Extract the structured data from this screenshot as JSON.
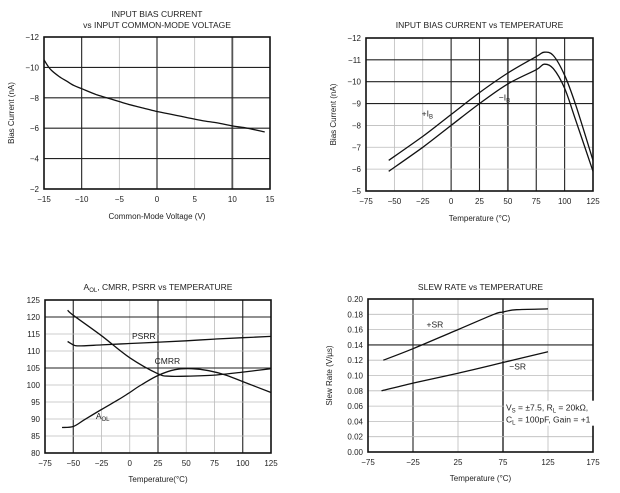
{
  "chart_data": [
    {
      "type": "line",
      "title": [
        "INPUT BIAS CURRENT",
        "vs INPUT COMMON-MODE VOLTAGE"
      ],
      "xlabel": "Common-Mode Voltage (V)",
      "ylabel": "Bias Current (nA)",
      "xlim": [
        -15,
        15
      ],
      "ylim": [
        -2,
        -12
      ],
      "xticks": [
        "−15",
        "−10",
        "−5",
        "0",
        "5",
        "10",
        "15"
      ],
      "xtick_values": [
        -15,
        -10,
        -5,
        0,
        5,
        10,
        15
      ],
      "yticks": [
        "−12",
        "−10",
        "−8",
        "−6",
        "−4",
        "−2"
      ],
      "ytick_values": [
        -12,
        -10,
        -8,
        -6,
        -4,
        -2
      ],
      "grid": true,
      "series": [
        {
          "name": "Bias Current",
          "x": [
            -15,
            -14.5,
            -14,
            -13,
            -12,
            -11,
            -10,
            -8,
            -6,
            -4,
            -2,
            0,
            2,
            4,
            6,
            8,
            10,
            12,
            14.3
          ],
          "y": [
            -10.5,
            -10.1,
            -9.8,
            -9.4,
            -9.1,
            -8.8,
            -8.6,
            -8.2,
            -7.9,
            -7.6,
            -7.35,
            -7.1,
            -6.9,
            -6.7,
            -6.5,
            -6.35,
            -6.15,
            -6.0,
            -5.75
          ]
        }
      ]
    },
    {
      "type": "line",
      "title": [
        "INPUT BIAS CURRENT vs TEMPERATURE"
      ],
      "xlabel": "Temperature (°C)",
      "ylabel": "Bias Current (nA)",
      "xlim": [
        -75,
        125
      ],
      "ylim": [
        -5,
        -12
      ],
      "xticks": [
        "−75",
        "−50",
        "−25",
        "0",
        "25",
        "50",
        "75",
        "100",
        "125"
      ],
      "xtick_values": [
        -75,
        -50,
        -25,
        0,
        25,
        50,
        75,
        100,
        125
      ],
      "yticks": [
        "−12",
        "−11",
        "−10",
        "−9",
        "−8",
        "−7",
        "−6",
        "−5"
      ],
      "ytick_values": [
        -12,
        -11,
        -10,
        -9,
        -8,
        -7,
        -6,
        -5
      ],
      "grid": true,
      "series": [
        {
          "name": "−IB",
          "label": "−I",
          "label_sub": "B",
          "x": [
            -55,
            -25,
            0,
            25,
            50,
            75,
            82,
            90,
            100,
            110,
            125
          ],
          "y": [
            -6.4,
            -7.5,
            -8.5,
            -9.5,
            -10.4,
            -11.15,
            -11.35,
            -11.2,
            -10.3,
            -8.9,
            -6.4
          ]
        },
        {
          "name": "+IB",
          "label": "+I",
          "label_sub": "B",
          "x": [
            -55,
            -25,
            0,
            25,
            50,
            75,
            82,
            90,
            100,
            110,
            125
          ],
          "y": [
            -5.9,
            -7.0,
            -8.0,
            -9.0,
            -9.9,
            -10.55,
            -10.8,
            -10.6,
            -9.7,
            -8.2,
            -5.9
          ]
        }
      ]
    },
    {
      "type": "line",
      "title": [
        "A",
        "OL",
        ", CMRR, PSRR  vs TEMPERATURE"
      ],
      "xlabel": "Temperature(°C)",
      "ylabel": "",
      "xlim": [
        -75,
        125
      ],
      "ylim": [
        80,
        125
      ],
      "xticks": [
        "−75",
        "−50",
        "−25",
        "0",
        "25",
        "50",
        "75",
        "100",
        "125"
      ],
      "xtick_values": [
        -75,
        -50,
        -25,
        0,
        25,
        50,
        75,
        100,
        125
      ],
      "yticks": [
        "125",
        "120",
        "115",
        "110",
        "105",
        "100",
        "95",
        "90",
        "85",
        "80"
      ],
      "ytick_values": [
        125,
        120,
        115,
        110,
        105,
        100,
        95,
        90,
        85,
        80
      ],
      "grid": true,
      "series": [
        {
          "name": "PSRR",
          "label": "PSRR",
          "x": [
            -55,
            -50,
            -45,
            -25,
            0,
            25,
            50,
            75,
            100,
            125
          ],
          "y": [
            112.8,
            111.8,
            111.5,
            111.8,
            112.2,
            112.6,
            113.0,
            113.5,
            113.9,
            114.3
          ]
        },
        {
          "name": "CMRR",
          "label": "CMRR",
          "x": [
            -55,
            -50,
            -25,
            0,
            25,
            35,
            50,
            75,
            100,
            125
          ],
          "y": [
            122,
            120.5,
            114.5,
            108.0,
            103.3,
            102.6,
            102.6,
            102.9,
            103.8,
            104.8
          ]
        },
        {
          "name": "AOL",
          "label": "A",
          "label_sub": "OL",
          "x": [
            -60,
            -50,
            -40,
            -25,
            -10,
            0,
            10,
            25,
            40,
            55,
            70,
            85,
            100,
            125
          ],
          "y": [
            87.5,
            87.8,
            89.8,
            92.8,
            95.7,
            97.8,
            100.0,
            102.8,
            104.5,
            104.8,
            104.2,
            102.9,
            101.0,
            97.8
          ]
        }
      ]
    },
    {
      "type": "line",
      "title": [
        "SLEW RATE vs TEMPERATURE"
      ],
      "xlabel": "Temperature (°C)",
      "ylabel": "Slew Rate (V/µs)",
      "xlim": [
        -75,
        175
      ],
      "ylim": [
        0,
        0.2
      ],
      "xticks": [
        "−75",
        "−25",
        "25",
        "75",
        "125",
        "175"
      ],
      "xtick_values": [
        -75,
        -25,
        25,
        75,
        125,
        175
      ],
      "yticks": [
        "0.20",
        "0.18",
        "0.16",
        "0.14",
        "0.12",
        "0.10",
        "0.08",
        "0.06",
        "0.04",
        "0.02",
        "0.00"
      ],
      "ytick_values": [
        0.2,
        0.18,
        0.16,
        0.14,
        0.12,
        0.1,
        0.08,
        0.06,
        0.04,
        0.02,
        0
      ],
      "grid": true,
      "series": [
        {
          "name": "+SR",
          "label": "+SR",
          "x": [
            -58,
            -25,
            25,
            65,
            75,
            90,
            125
          ],
          "y": [
            0.12,
            0.135,
            0.16,
            0.18,
            0.183,
            0.186,
            0.187
          ]
        },
        {
          "name": "−SR",
          "label": "−SR",
          "x": [
            -60,
            -25,
            25,
            75,
            125
          ],
          "y": [
            0.08,
            0.09,
            0.103,
            0.117,
            0.131
          ]
        }
      ],
      "annotation": {
        "line1": [
          "V",
          "S",
          " = ±7.5, R",
          "L",
          " = 20kΩ,"
        ],
        "line2": [
          "C",
          "L",
          " = 100pF, Gain = +1"
        ]
      }
    }
  ]
}
